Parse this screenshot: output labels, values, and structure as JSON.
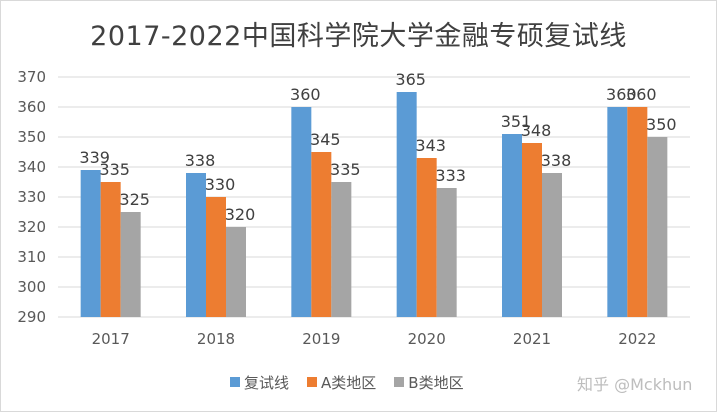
{
  "chart_data": {
    "type": "bar",
    "title": "2017-2022中国科学院大学金融专硕复试线",
    "categories": [
      "2017",
      "2018",
      "2019",
      "2020",
      "2021",
      "2022"
    ],
    "series": [
      {
        "name": "复试线",
        "color": "#5B9BD5",
        "values": [
          339,
          338,
          360,
          365,
          351,
          360
        ]
      },
      {
        "name": "A类地区",
        "color": "#ED7D31",
        "values": [
          335,
          330,
          345,
          343,
          348,
          360
        ]
      },
      {
        "name": "B类地区",
        "color": "#A5A5A5",
        "values": [
          325,
          320,
          335,
          333,
          338,
          350
        ]
      }
    ],
    "ylim": [
      290,
      370
    ],
    "yticks": [
      290,
      300,
      310,
      320,
      330,
      340,
      350,
      360,
      370
    ],
    "grid": true,
    "legend_position": "bottom"
  },
  "watermark": "知乎 @Mckhun"
}
